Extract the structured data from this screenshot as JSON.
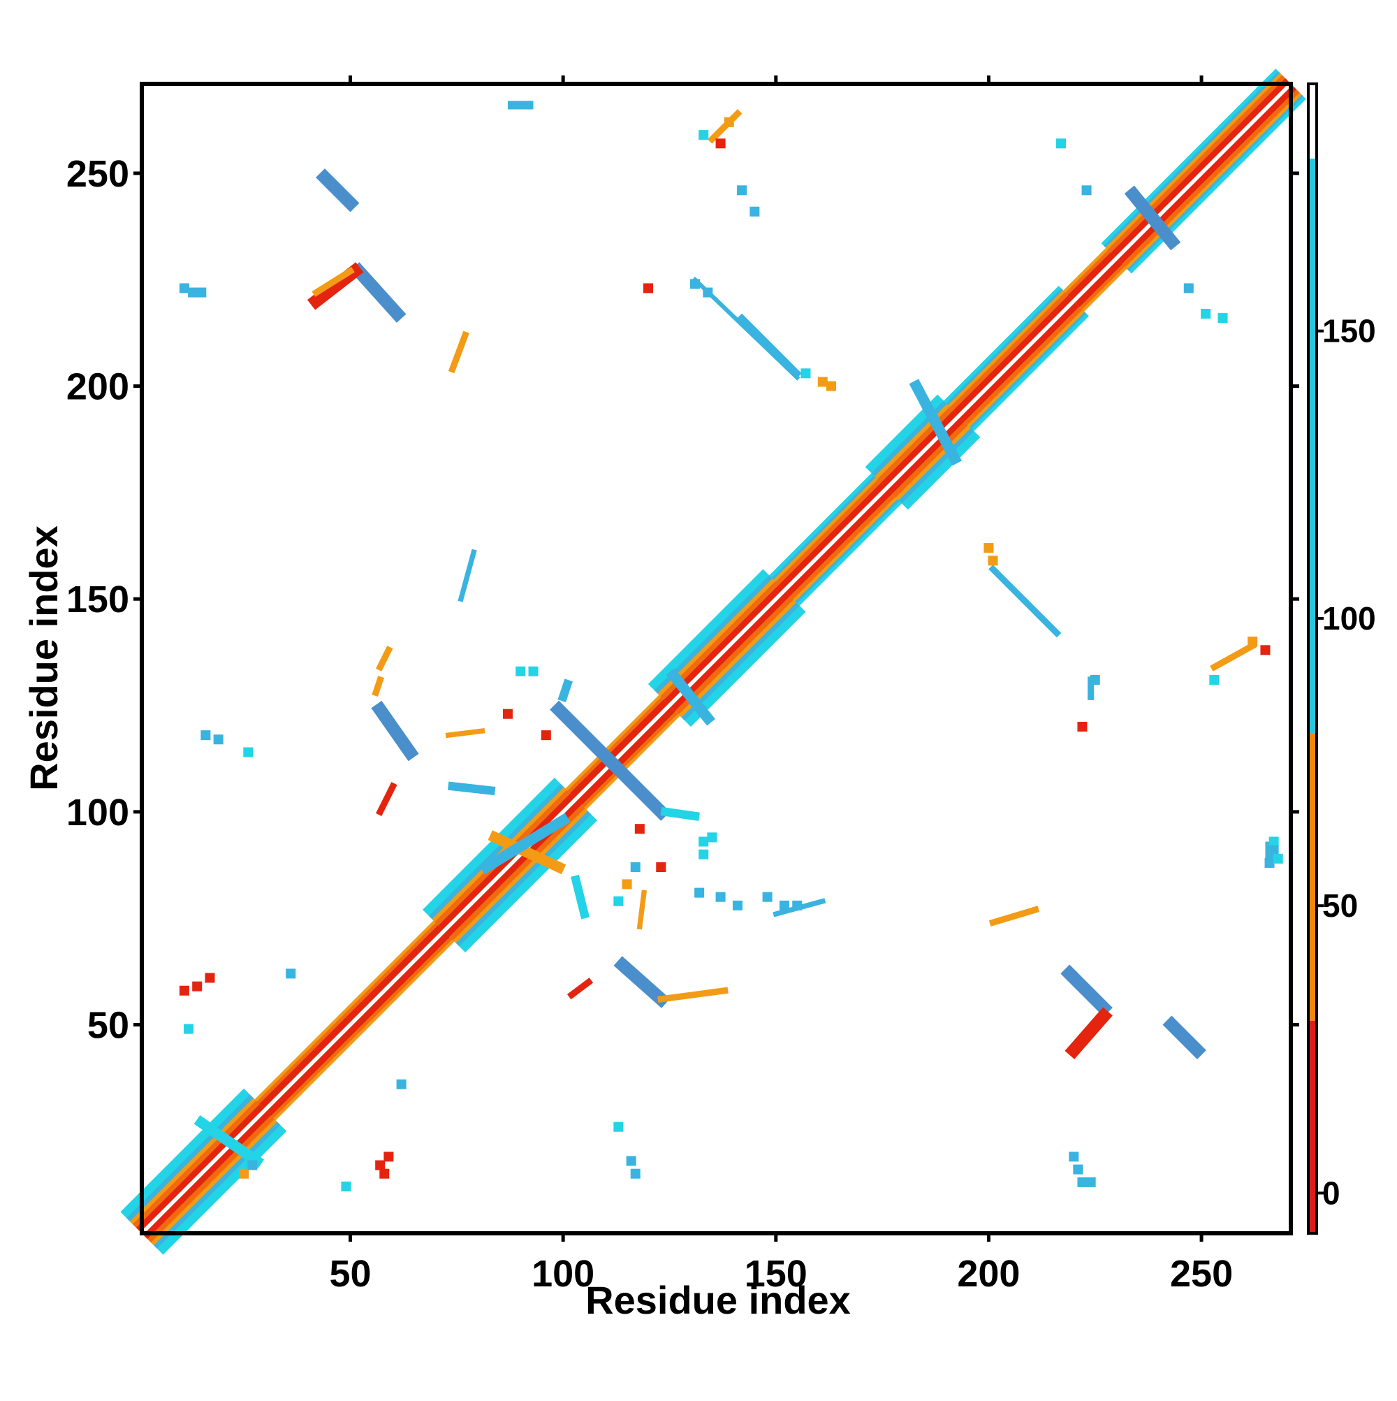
{
  "chart_data": {
    "type": "heatmap",
    "title": "",
    "xlabel": "Residue index",
    "ylabel": "Residue index",
    "xlim": [
      1,
      271
    ],
    "ylim": [
      1,
      271
    ],
    "xticks": [
      "50",
      "100",
      "150",
      "200",
      "250"
    ],
    "yticks": [
      "50",
      "100",
      "150",
      "200",
      "250"
    ],
    "grid": false,
    "legend": "colorbar-right",
    "colorbar": {
      "range": [
        -7,
        193
      ],
      "ticks": [
        "0",
        "50",
        "100",
        "150"
      ],
      "bands": [
        {
          "from": -7,
          "to": 30,
          "color": "#dd1d1d"
        },
        {
          "from": 30,
          "to": 80,
          "color": "#f0870a"
        },
        {
          "from": 80,
          "to": 180,
          "color": "#26c8e0"
        },
        {
          "from": 180,
          "to": 193,
          "color": "#ffffff"
        }
      ]
    },
    "colors": {
      "red": "#e4240e",
      "darkorange": "#f26a10",
      "orange": "#f39b14",
      "cyan": "#23d3e6",
      "lightblue": "#39b3df",
      "steelblue": "#4a8fcb"
    },
    "diagonal": {
      "from": 1,
      "to": 271,
      "segments": [
        {
          "from": 1,
          "to": 30,
          "type": "sheet"
        },
        {
          "from": 30,
          "to": 72,
          "type": "coil"
        },
        {
          "from": 72,
          "to": 103,
          "type": "sheet"
        },
        {
          "from": 103,
          "to": 125,
          "type": "coil"
        },
        {
          "from": 125,
          "to": 152,
          "type": "sheet"
        },
        {
          "from": 152,
          "to": 176,
          "type": "helix"
        },
        {
          "from": 176,
          "to": 193,
          "type": "sheet"
        },
        {
          "from": 193,
          "to": 220,
          "type": "helix"
        },
        {
          "from": 220,
          "to": 230,
          "type": "coil"
        },
        {
          "from": 230,
          "to": 271,
          "type": "helix"
        }
      ]
    },
    "segments": [
      {
        "x1": 99,
        "y1": 124,
        "x2": 123,
        "y2": 100,
        "w": 3,
        "color": "steelblue"
      },
      {
        "x1": 100,
        "y1": 127,
        "x2": 101,
        "y2": 130,
        "w": 2,
        "color": "lightblue"
      },
      {
        "x1": 124,
        "y1": 100,
        "x2": 131,
        "y2": 99,
        "w": 2,
        "color": "cyan"
      },
      {
        "x1": 57,
        "y1": 124,
        "x2": 64,
        "y2": 114,
        "w": 3,
        "color": "steelblue"
      },
      {
        "x1": 114,
        "y1": 64,
        "x2": 123,
        "y2": 56,
        "w": 3,
        "color": "steelblue"
      },
      {
        "x1": 123,
        "y1": 56,
        "x2": 138,
        "y2": 58,
        "w": 1.5,
        "color": "orange"
      },
      {
        "x1": 44,
        "y1": 249,
        "x2": 50,
        "y2": 243,
        "w": 3,
        "color": "steelblue"
      },
      {
        "x1": 52,
        "y1": 227,
        "x2": 61,
        "y2": 217,
        "w": 3,
        "color": "steelblue"
      },
      {
        "x1": 42,
        "y1": 220,
        "x2": 51,
        "y2": 227,
        "w": 3,
        "color": "red"
      },
      {
        "x1": 219,
        "y1": 62,
        "x2": 227,
        "y2": 54,
        "w": 3,
        "color": "steelblue"
      },
      {
        "x1": 220,
        "y1": 44,
        "x2": 227,
        "y2": 52,
        "w": 3,
        "color": "red"
      },
      {
        "x1": 243,
        "y1": 50,
        "x2": 249,
        "y2": 44,
        "w": 3,
        "color": "steelblue"
      },
      {
        "x1": 234,
        "y1": 245,
        "x2": 243,
        "y2": 234,
        "w": 3,
        "color": "steelblue"
      },
      {
        "x1": 183,
        "y1": 200,
        "x2": 192,
        "y2": 183,
        "w": 2.5,
        "color": "lightblue"
      },
      {
        "x1": 84,
        "y1": 94,
        "x2": 99,
        "y2": 87,
        "w": 2.5,
        "color": "orange"
      },
      {
        "x1": 82,
        "y1": 87,
        "x2": 100,
        "y2": 98,
        "w": 2.5,
        "color": "lightblue"
      },
      {
        "x1": 15,
        "y1": 27,
        "x2": 28,
        "y2": 18,
        "w": 2.5,
        "color": "cyan"
      },
      {
        "x1": 126,
        "y1": 132,
        "x2": 134,
        "y2": 122,
        "w": 2.5,
        "color": "lightblue"
      },
      {
        "x1": 74,
        "y1": 106,
        "x2": 83,
        "y2": 105,
        "w": 2,
        "color": "lightblue"
      },
      {
        "x1": 103,
        "y1": 84,
        "x2": 105,
        "y2": 76,
        "w": 2,
        "color": "cyan"
      },
      {
        "x1": 42,
        "y1": 222,
        "x2": 50,
        "y2": 227,
        "w": 1.5,
        "color": "orange"
      },
      {
        "x1": 135,
        "y1": 258,
        "x2": 141,
        "y2": 264,
        "w": 1.5,
        "color": "orange"
      },
      {
        "x1": 142,
        "y1": 216,
        "x2": 155,
        "y2": 203,
        "w": 1.5,
        "color": "lightblue"
      },
      {
        "x1": 201,
        "y1": 157,
        "x2": 216,
        "y2": 142,
        "w": 1.5,
        "color": "lightblue"
      },
      {
        "x1": 253,
        "y1": 134,
        "x2": 262,
        "y2": 139,
        "w": 1.5,
        "color": "orange"
      },
      {
        "x1": 57,
        "y1": 134,
        "x2": 59,
        "y2": 138,
        "w": 1.5,
        "color": "orange"
      },
      {
        "x1": 56,
        "y1": 128,
        "x2": 57,
        "y2": 131,
        "w": 1.5,
        "color": "orange"
      },
      {
        "x1": 57,
        "y1": 100,
        "x2": 60,
        "y2": 106,
        "w": 1.5,
        "color": "red"
      },
      {
        "x1": 102,
        "y1": 57,
        "x2": 106,
        "y2": 60,
        "w": 1.5,
        "color": "red"
      },
      {
        "x1": 224,
        "y1": 127,
        "x2": 224,
        "y2": 131,
        "w": 1.5,
        "color": "lightblue"
      },
      {
        "x1": 74,
        "y1": 204,
        "x2": 77,
        "y2": 212,
        "w": 1.5,
        "color": "orange"
      },
      {
        "x1": 201,
        "y1": 74,
        "x2": 211,
        "y2": 77,
        "w": 1.5,
        "color": "orange"
      },
      {
        "x1": 73,
        "y1": 118,
        "x2": 81,
        "y2": 119,
        "w": 1.2,
        "color": "orange"
      },
      {
        "x1": 118,
        "y1": 73,
        "x2": 119,
        "y2": 81,
        "w": 1.2,
        "color": "orange"
      },
      {
        "x1": 76,
        "y1": 150,
        "x2": 79,
        "y2": 161,
        "w": 1.2,
        "color": "lightblue"
      },
      {
        "x1": 150,
        "y1": 76,
        "x2": 161,
        "y2": 79,
        "w": 1.2,
        "color": "lightblue"
      },
      {
        "x1": 131,
        "y1": 225,
        "x2": 155,
        "y2": 202,
        "w": 1,
        "color": "lightblue"
      },
      {
        "x1": 88,
        "y1": 266,
        "x2": 92,
        "y2": 266,
        "w": 2,
        "color": "lightblue"
      },
      {
        "x1": 266,
        "y1": 88,
        "x2": 266,
        "y2": 92,
        "w": 2,
        "color": "lightblue"
      }
    ],
    "dots": [
      [
        11,
        223,
        "lightblue"
      ],
      [
        13,
        222,
        "lightblue"
      ],
      [
        15,
        222,
        "lightblue"
      ],
      [
        11,
        58,
        "red"
      ],
      [
        14,
        59,
        "red"
      ],
      [
        17,
        61,
        "red"
      ],
      [
        12,
        49,
        "cyan"
      ],
      [
        16,
        118,
        "lightblue"
      ],
      [
        19,
        117,
        "lightblue"
      ],
      [
        26,
        114,
        "cyan"
      ],
      [
        36,
        62,
        "lightblue"
      ],
      [
        62,
        36,
        "lightblue"
      ],
      [
        49,
        12,
        "cyan"
      ],
      [
        57,
        17,
        "red"
      ],
      [
        59,
        19,
        "red"
      ],
      [
        58,
        15,
        "red"
      ],
      [
        117,
        15,
        "lightblue"
      ],
      [
        116,
        18,
        "lightblue"
      ],
      [
        113,
        26,
        "cyan"
      ],
      [
        220,
        19,
        "lightblue"
      ],
      [
        221,
        16,
        "lightblue"
      ],
      [
        222,
        13,
        "lightblue"
      ],
      [
        224,
        13,
        "lightblue"
      ],
      [
        87,
        123,
        "red"
      ],
      [
        90,
        133,
        "cyan"
      ],
      [
        93,
        133,
        "cyan"
      ],
      [
        96,
        118,
        "red"
      ],
      [
        118,
        96,
        "red"
      ],
      [
        133,
        90,
        "cyan"
      ],
      [
        133,
        93,
        "cyan"
      ],
      [
        123,
        87,
        "red"
      ],
      [
        113,
        79,
        "cyan"
      ],
      [
        115,
        83,
        "orange"
      ],
      [
        117,
        87,
        "lightblue"
      ],
      [
        135,
        94,
        "cyan"
      ],
      [
        132,
        81,
        "lightblue"
      ],
      [
        137,
        80,
        "lightblue"
      ],
      [
        141,
        78,
        "lightblue"
      ],
      [
        148,
        80,
        "lightblue"
      ],
      [
        152,
        78,
        "lightblue"
      ],
      [
        155,
        78,
        "lightblue"
      ],
      [
        120,
        223,
        "red"
      ],
      [
        131,
        224,
        "lightblue"
      ],
      [
        134,
        222,
        "lightblue"
      ],
      [
        157,
        203,
        "cyan"
      ],
      [
        161,
        201,
        "orange"
      ],
      [
        163,
        200,
        "orange"
      ],
      [
        217,
        257,
        "cyan"
      ],
      [
        223,
        246,
        "lightblue"
      ],
      [
        247,
        223,
        "lightblue"
      ],
      [
        251,
        217,
        "cyan"
      ],
      [
        255,
        216,
        "cyan"
      ],
      [
        222,
        120,
        "red"
      ],
      [
        225,
        131,
        "lightblue"
      ],
      [
        200,
        162,
        "orange"
      ],
      [
        201,
        159,
        "orange"
      ],
      [
        267,
        93,
        "cyan"
      ],
      [
        253,
        131,
        "cyan"
      ],
      [
        262,
        140,
        "orange"
      ],
      [
        265,
        138,
        "red"
      ],
      [
        145,
        241,
        "lightblue"
      ],
      [
        142,
        246,
        "lightblue"
      ],
      [
        137,
        257,
        "red"
      ],
      [
        133,
        259,
        "cyan"
      ],
      [
        139,
        262,
        "orange"
      ],
      [
        266,
        88,
        "lightblue"
      ],
      [
        267,
        91,
        "lightblue"
      ],
      [
        268,
        89,
        "cyan"
      ],
      [
        25,
        15,
        "orange"
      ],
      [
        27,
        17,
        "lightblue"
      ]
    ]
  }
}
